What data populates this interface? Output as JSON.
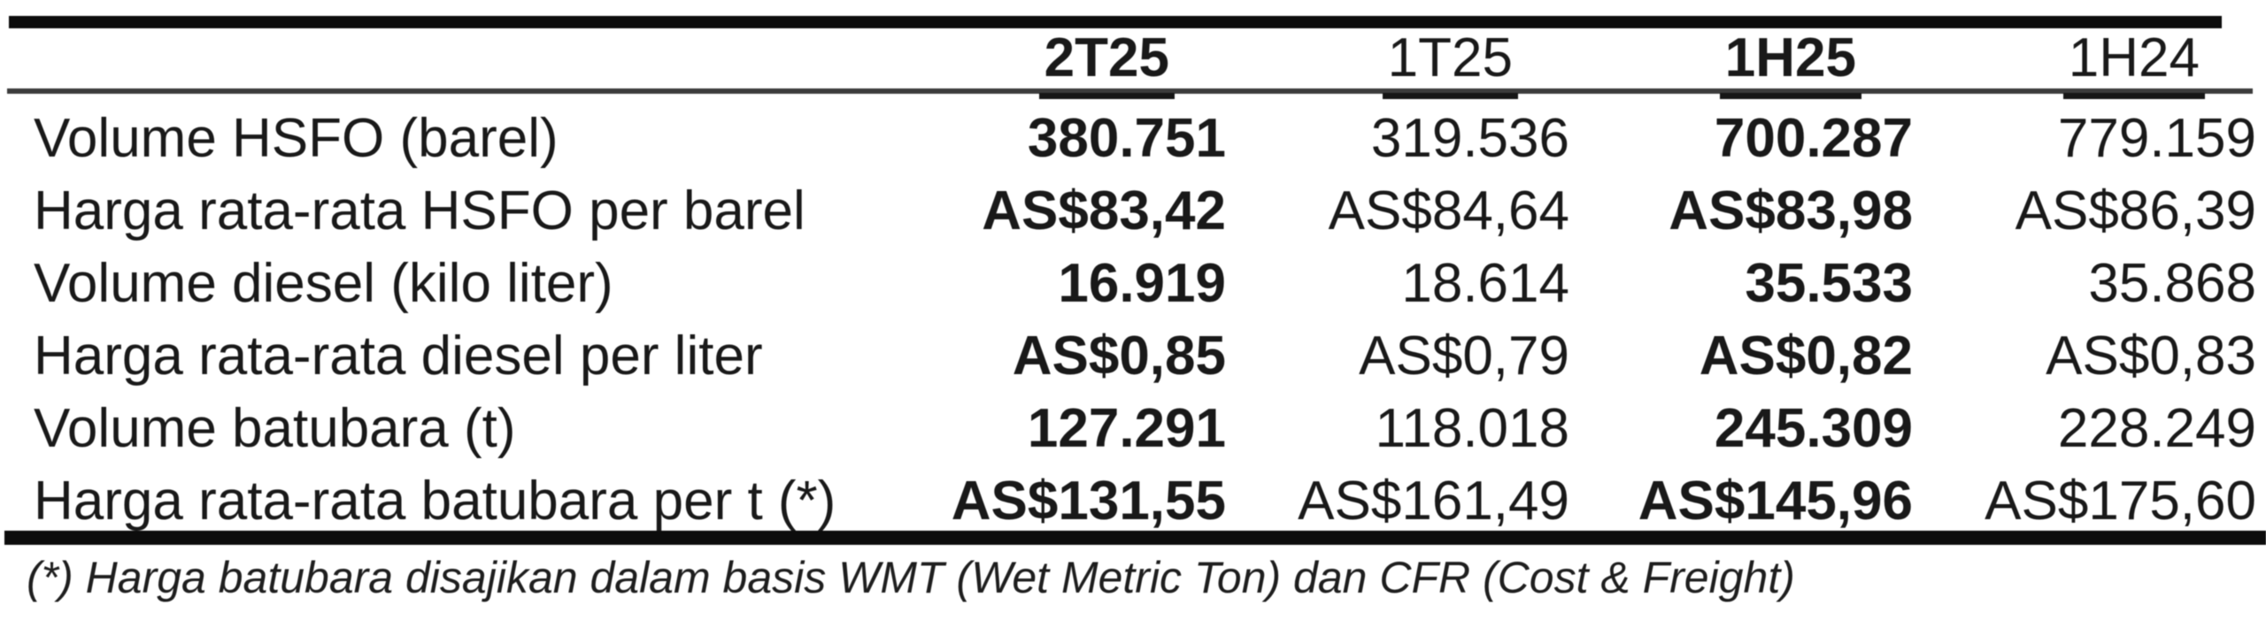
{
  "page": {
    "background_color": "#ffffff",
    "text_color": "#191919",
    "rule_color": "#0c0c0c"
  },
  "table": {
    "columns": [
      {
        "label": "2T25",
        "emphasis": true
      },
      {
        "label": "1T25",
        "emphasis": false
      },
      {
        "label": "1H25",
        "emphasis": true
      },
      {
        "label": "1H24",
        "emphasis": false
      }
    ],
    "rows": [
      {
        "label": "Volume HSFO (barel)",
        "values": [
          "380.751",
          "319.536",
          "700.287",
          "779.159"
        ]
      },
      {
        "label": "Harga rata-rata HSFO per barel",
        "values": [
          "AS$83,42",
          "AS$84,64",
          "AS$83,98",
          "AS$86,39"
        ]
      },
      {
        "label": "Volume diesel (kilo liter)",
        "values": [
          "16.919",
          "18.614",
          "35.533",
          "35.868"
        ]
      },
      {
        "label": "Harga rata-rata diesel per liter",
        "values": [
          "AS$0,85",
          "AS$0,79",
          "AS$0,82",
          "AS$0,83"
        ]
      },
      {
        "label": "Volume batubara (t)",
        "values": [
          "127.291",
          "118.018",
          "245.309",
          "228.249"
        ]
      },
      {
        "label": "Harga rata-rata batubara per t (*)",
        "values": [
          "AS$131,55",
          "AS$161,49",
          "AS$145,96",
          "AS$175,60"
        ]
      }
    ],
    "footnote": "(*) Harga batubara disajikan dalam basis WMT (Wet Metric Ton) dan CFR (Cost & Freight)"
  },
  "chart_data": {
    "type": "table",
    "columns": [
      "",
      "2T25",
      "1T25",
      "1H25",
      "1H24"
    ],
    "rows": [
      [
        "Volume HSFO (barel)",
        "380.751",
        "319.536",
        "700.287",
        "779.159"
      ],
      [
        "Harga rata-rata HSFO per barel",
        "AS$83,42",
        "AS$84,64",
        "AS$83,98",
        "AS$86,39"
      ],
      [
        "Volume diesel (kilo liter)",
        "16.919",
        "18.614",
        "35.533",
        "35.868"
      ],
      [
        "Harga rata-rata diesel per liter",
        "AS$0,85",
        "AS$0,79",
        "AS$0,82",
        "AS$0,83"
      ],
      [
        "Volume batubara (t)",
        "127.291",
        "118.018",
        "245.309",
        "228.249"
      ],
      [
        "Harga rata-rata batubara per t (*)",
        "AS$131,55",
        "AS$161,49",
        "AS$145,96",
        "AS$175,60"
      ]
    ],
    "footnote": "(*) Harga batubara disajikan dalam basis WMT (Wet Metric Ton) dan CFR (Cost & Freight)"
  }
}
